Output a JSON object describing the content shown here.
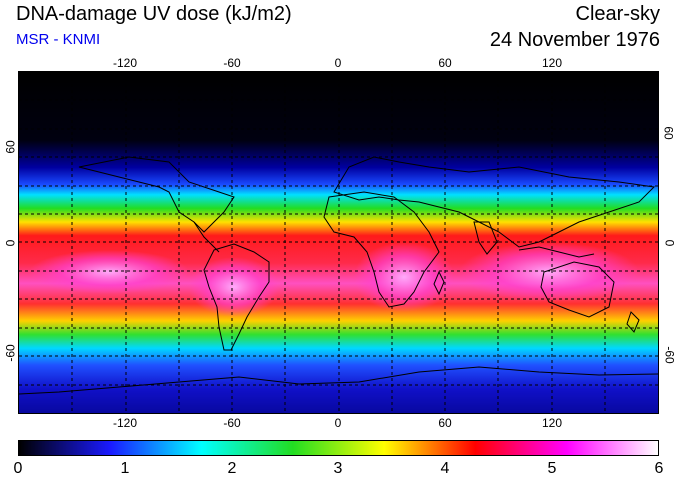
{
  "header": {
    "title": "DNA-damage UV dose (kJ/m2)",
    "subtitle": "MSR - KNMI",
    "sky_condition": "Clear-sky",
    "date": "24 November 1976"
  },
  "map": {
    "projection": "equirectangular",
    "lon_range": [
      -180,
      180
    ],
    "lat_range": [
      -90,
      90
    ],
    "grid": true,
    "lon_ticks": [
      "-120",
      "-60",
      "0",
      "60",
      "120"
    ],
    "lat_ticks": [
      "60",
      "0",
      "-60"
    ],
    "coastlines": true
  },
  "colorbar": {
    "min": 0,
    "max": 6,
    "labels": [
      "0",
      "1",
      "2",
      "3",
      "4",
      "5",
      "6"
    ],
    "colors": [
      "#000000",
      "#1a1aff",
      "#00ffff",
      "#22dd22",
      "#ffff00",
      "#ff0000",
      "#ff00ff",
      "#ffffff"
    ]
  }
}
